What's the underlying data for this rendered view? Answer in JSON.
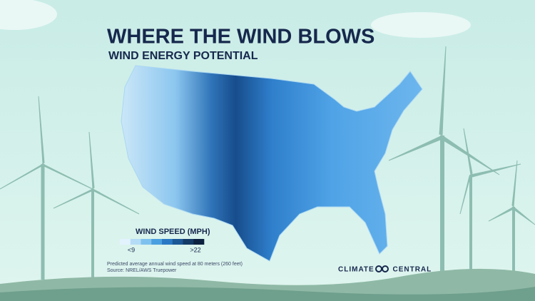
{
  "header": {
    "title": "WHERE THE WIND BLOWS",
    "subtitle": "WIND ENERGY POTENTIAL"
  },
  "legend": {
    "title": "WIND SPEED (MPH)",
    "low_label": "<9",
    "high_label": ">22",
    "colors": [
      "#e3f3fd",
      "#b5dcf6",
      "#7fc1ee",
      "#4a9fe0",
      "#2a78c4",
      "#1c5796",
      "#143a66",
      "#0d2240"
    ]
  },
  "footer": {
    "note": "Predicted average annual wind speed at 80 meters (260 feet)",
    "source": "Source: NREL/AWS Truepower",
    "logo": "CLIMATE CENTRAL"
  }
}
